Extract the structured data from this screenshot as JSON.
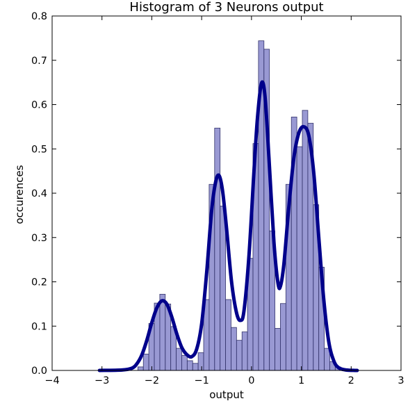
{
  "chart_data": {
    "type": "bar",
    "title": "Histogram of 3 Neurons output",
    "xlabel": "output",
    "ylabel": "occurences",
    "xlim": [
      -4,
      3
    ],
    "ylim": [
      0,
      0.8
    ],
    "xticks": [
      -4,
      -3,
      -2,
      -1,
      0,
      1,
      2,
      3
    ],
    "xtick_labels": [
      "−4",
      "−3",
      "−2",
      "−1",
      "0",
      "1",
      "2",
      "3"
    ],
    "yticks": [
      0,
      0.1,
      0.2,
      0.3,
      0.4,
      0.5,
      0.6,
      0.7,
      0.8
    ],
    "ytick_labels": [
      "0.0",
      "0.1",
      "0.2",
      "0.3",
      "0.4",
      "0.5",
      "0.6",
      "0.7",
      "0.8"
    ],
    "grid": false,
    "histogram": {
      "color": "#7777c4",
      "edge_color": "#33336b",
      "bins": [
        {
          "x0": -3.05,
          "x1": -2.94,
          "value": 0.003
        },
        {
          "x0": -2.94,
          "x1": -2.83,
          "value": 0.0
        },
        {
          "x0": -2.83,
          "x1": -2.72,
          "value": 0.0
        },
        {
          "x0": -2.72,
          "x1": -2.61,
          "value": 0.0
        },
        {
          "x0": -2.61,
          "x1": -2.5,
          "value": 0.0
        },
        {
          "x0": -2.5,
          "x1": -2.39,
          "value": 0.0
        },
        {
          "x0": -2.39,
          "x1": -2.28,
          "value": 0.0
        },
        {
          "x0": -2.28,
          "x1": -2.17,
          "value": 0.008
        },
        {
          "x0": -2.17,
          "x1": -2.06,
          "value": 0.037
        },
        {
          "x0": -2.06,
          "x1": -1.95,
          "value": 0.106
        },
        {
          "x0": -1.95,
          "x1": -1.84,
          "value": 0.152
        },
        {
          "x0": -1.84,
          "x1": -1.73,
          "value": 0.172
        },
        {
          "x0": -1.73,
          "x1": -1.62,
          "value": 0.15
        },
        {
          "x0": -1.62,
          "x1": -1.51,
          "value": 0.099
        },
        {
          "x0": -1.51,
          "x1": -1.4,
          "value": 0.05
        },
        {
          "x0": -1.4,
          "x1": -1.29,
          "value": 0.034
        },
        {
          "x0": -1.29,
          "x1": -1.18,
          "value": 0.022
        },
        {
          "x0": -1.18,
          "x1": -1.07,
          "value": 0.016
        },
        {
          "x0": -1.07,
          "x1": -0.96,
          "value": 0.04
        },
        {
          "x0": -0.96,
          "x1": -0.85,
          "value": 0.16
        },
        {
          "x0": -0.85,
          "x1": -0.74,
          "value": 0.42
        },
        {
          "x0": -0.74,
          "x1": -0.63,
          "value": 0.547
        },
        {
          "x0": -0.63,
          "x1": -0.52,
          "value": 0.371
        },
        {
          "x0": -0.52,
          "x1": -0.41,
          "value": 0.16
        },
        {
          "x0": -0.41,
          "x1": -0.3,
          "value": 0.097
        },
        {
          "x0": -0.3,
          "x1": -0.19,
          "value": 0.068
        },
        {
          "x0": -0.19,
          "x1": -0.08,
          "value": 0.087
        },
        {
          "x0": -0.08,
          "x1": 0.03,
          "value": 0.253
        },
        {
          "x0": 0.03,
          "x1": 0.14,
          "value": 0.512
        },
        {
          "x0": 0.14,
          "x1": 0.25,
          "value": 0.744
        },
        {
          "x0": 0.25,
          "x1": 0.36,
          "value": 0.725
        },
        {
          "x0": 0.36,
          "x1": 0.47,
          "value": 0.315
        },
        {
          "x0": 0.47,
          "x1": 0.58,
          "value": 0.095
        },
        {
          "x0": 0.58,
          "x1": 0.69,
          "value": 0.151
        },
        {
          "x0": 0.69,
          "x1": 0.8,
          "value": 0.42
        },
        {
          "x0": 0.8,
          "x1": 0.91,
          "value": 0.572
        },
        {
          "x0": 0.91,
          "x1": 1.02,
          "value": 0.505
        },
        {
          "x0": 1.02,
          "x1": 1.13,
          "value": 0.587
        },
        {
          "x0": 1.13,
          "x1": 1.24,
          "value": 0.558
        },
        {
          "x0": 1.24,
          "x1": 1.35,
          "value": 0.374
        },
        {
          "x0": 1.35,
          "x1": 1.46,
          "value": 0.233
        },
        {
          "x0": 1.46,
          "x1": 1.57,
          "value": 0.05
        },
        {
          "x0": 1.57,
          "x1": 1.68,
          "value": 0.02
        },
        {
          "x0": 1.68,
          "x1": 1.79,
          "value": 0.008
        },
        {
          "x0": 1.79,
          "x1": 1.9,
          "value": 0.004
        },
        {
          "x0": 1.9,
          "x1": 2.01,
          "value": 0.003
        },
        {
          "x0": 2.01,
          "x1": 2.12,
          "value": 0.003
        }
      ]
    },
    "density_curve": {
      "color": "#00008b",
      "points": [
        [
          -3.05,
          0.0
        ],
        [
          -2.6,
          0.001
        ],
        [
          -2.4,
          0.005
        ],
        [
          -2.3,
          0.015
        ],
        [
          -2.2,
          0.035
        ],
        [
          -2.1,
          0.068
        ],
        [
          -2.0,
          0.108
        ],
        [
          -1.9,
          0.141
        ],
        [
          -1.8,
          0.157
        ],
        [
          -1.7,
          0.15
        ],
        [
          -1.6,
          0.121
        ],
        [
          -1.5,
          0.083
        ],
        [
          -1.4,
          0.052
        ],
        [
          -1.3,
          0.036
        ],
        [
          -1.2,
          0.031
        ],
        [
          -1.1,
          0.048
        ],
        [
          -1.0,
          0.105
        ],
        [
          -0.9,
          0.22
        ],
        [
          -0.8,
          0.36
        ],
        [
          -0.72,
          0.425
        ],
        [
          -0.65,
          0.44
        ],
        [
          -0.58,
          0.405
        ],
        [
          -0.5,
          0.32
        ],
        [
          -0.4,
          0.2
        ],
        [
          -0.3,
          0.13
        ],
        [
          -0.22,
          0.113
        ],
        [
          -0.15,
          0.135
        ],
        [
          -0.05,
          0.26
        ],
        [
          0.05,
          0.45
        ],
        [
          0.12,
          0.57
        ],
        [
          0.2,
          0.648
        ],
        [
          0.27,
          0.62
        ],
        [
          0.35,
          0.48
        ],
        [
          0.45,
          0.29
        ],
        [
          0.53,
          0.198
        ],
        [
          0.58,
          0.19
        ],
        [
          0.65,
          0.24
        ],
        [
          0.75,
          0.37
        ],
        [
          0.85,
          0.48
        ],
        [
          0.95,
          0.536
        ],
        [
          1.05,
          0.55
        ],
        [
          1.15,
          0.53
        ],
        [
          1.25,
          0.445
        ],
        [
          1.35,
          0.3
        ],
        [
          1.45,
          0.16
        ],
        [
          1.55,
          0.065
        ],
        [
          1.65,
          0.022
        ],
        [
          1.75,
          0.006
        ],
        [
          1.9,
          0.001
        ],
        [
          2.12,
          0.0
        ]
      ]
    }
  }
}
